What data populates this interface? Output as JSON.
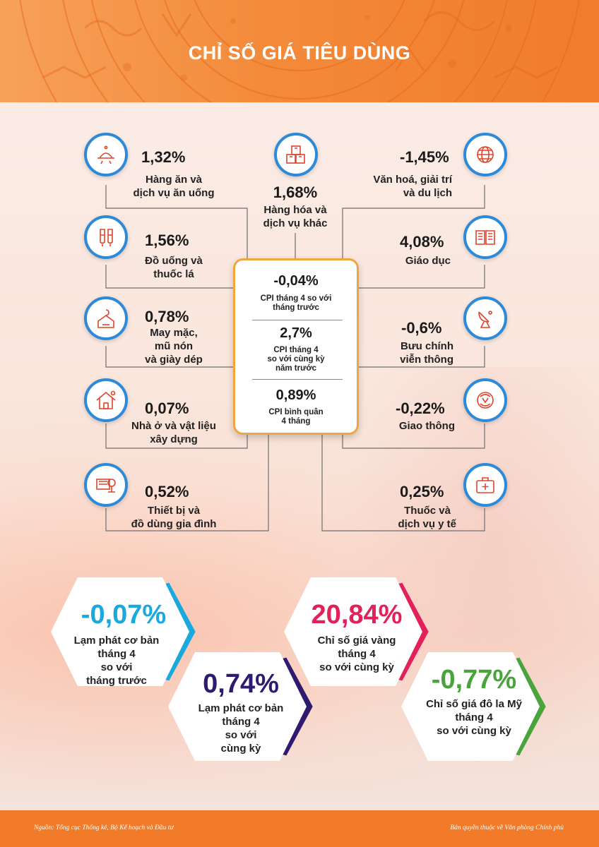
{
  "title": "CHỈ SỐ GIÁ TIÊU DÙNG",
  "groups": {
    "food": {
      "value": "1,32%",
      "label1": "Hàng ăn và",
      "label2": "dịch vụ ăn uống",
      "icon": "food-tray-icon"
    },
    "goods": {
      "value": "1,68%",
      "label1": "Hàng hóa và",
      "label2": "dịch vụ khác",
      "icon": "boxes-icon"
    },
    "culture": {
      "value": "-1,45%",
      "label1": "Văn hoá, giải trí",
      "label2": "và du lịch",
      "icon": "globe-icon"
    },
    "drinks": {
      "value": "1,56%",
      "label1": "Đồ uống và",
      "label2": "thuốc lá",
      "icon": "drinks-icon"
    },
    "education": {
      "value": "4,08%",
      "label1": "Giáo dục",
      "icon": "book-icon"
    },
    "clothing": {
      "value": "0,78%",
      "label1": "May mặc,",
      "label2": "mũ nón",
      "label3": "và giày dép",
      "icon": "clothes-hanger-icon"
    },
    "post": {
      "value": "-0,6%",
      "label1": "Bưu chính",
      "label2": "viễn thông",
      "icon": "satellite-dish-icon"
    },
    "housing": {
      "value": "0,07%",
      "label1": "Nhà ở và vật liệu",
      "label2": "xây dựng",
      "icon": "house-icon"
    },
    "transport": {
      "value": "-0,22%",
      "label1": "Giao thông",
      "icon": "traffic-icon"
    },
    "appliances": {
      "value": "0,52%",
      "label1": "Thiết bị và",
      "label2": "đồ dùng gia đình",
      "icon": "appliances-icon"
    },
    "medicine": {
      "value": "0,25%",
      "label1": "Thuốc và",
      "label2": "dịch vụ y tế",
      "icon": "medical-kit-icon"
    }
  },
  "center": {
    "cpi_month": {
      "value": "-0,04%",
      "label1": "CPI tháng 4 so với",
      "label2": "tháng trước"
    },
    "cpi_year": {
      "value": "2,7%",
      "label1": "CPI tháng 4",
      "label2": "so với cùng kỳ",
      "label3": "năm trước"
    },
    "cpi_avg": {
      "value": "0,89%",
      "label1": "CPI bình quân",
      "label2": "4 tháng"
    }
  },
  "hexagons": {
    "core_month": {
      "value": "-0,07%",
      "lines": [
        "Lạm phát cơ bản",
        "tháng 4",
        "so với",
        "tháng trước"
      ],
      "color": "#1aa9dc"
    },
    "core_year": {
      "value": "0,74%",
      "lines": [
        "Lạm phát cơ bản",
        "tháng 4",
        "so với",
        "cùng kỳ"
      ],
      "color": "#2e1a6e"
    },
    "gold": {
      "value": "20,84%",
      "lines": [
        "Chỉ số giá vàng",
        "tháng 4",
        "so với cùng kỳ"
      ],
      "color": "#e2215a"
    },
    "usd": {
      "value": "-0,77%",
      "lines": [
        "Chỉ số giá đô la Mỹ",
        "tháng 4",
        "so với cùng kỳ"
      ],
      "color": "#4aa43c"
    }
  },
  "footer": {
    "source": "Nguồn: Tổng cục Thống kê, Bộ Kế hoạch và Đầu tư",
    "copyright": "Bản quyền thuộc về Văn phòng Chính phủ"
  },
  "colors": {
    "accent_orange": "#f27b2a",
    "icon_blue": "#2d8ad8",
    "box_border": "#f0a640"
  }
}
